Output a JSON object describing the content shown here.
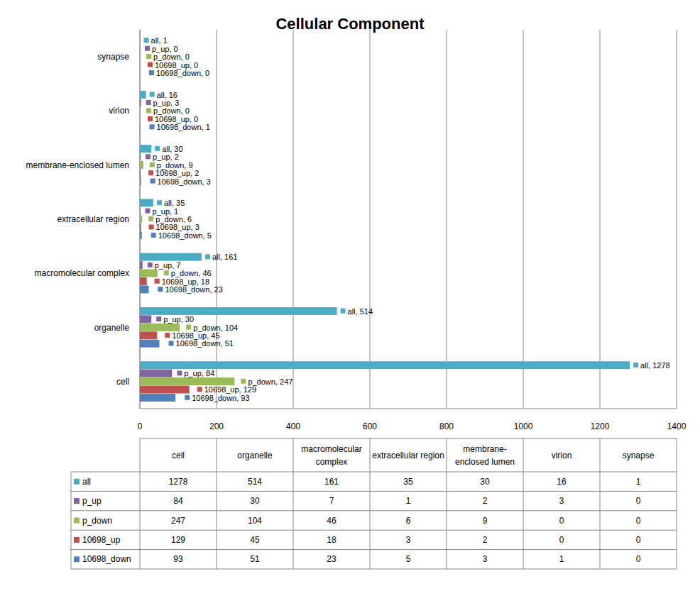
{
  "chart_data": {
    "type": "bar",
    "title": "Cellular Component",
    "orientation": "horizontal",
    "grid": true,
    "data_labels": true,
    "categories": [
      "cell",
      "organelle",
      "macromolecular complex",
      "extracellular region",
      "membrane-enclosed lumen",
      "virion",
      "synapse"
    ],
    "xlim": [
      0,
      1400
    ],
    "xticks": [
      0,
      200,
      400,
      600,
      800,
      1000,
      1200,
      1400
    ],
    "series": [
      {
        "name": "all",
        "color": "#4bacc6",
        "values": [
          1278,
          514,
          161,
          35,
          30,
          16,
          1
        ],
        "value_labels": [
          "all, 1278",
          "all, 514",
          "all, 161",
          "all, 35",
          "all, 30",
          "all, 16",
          "all, 1"
        ]
      },
      {
        "name": "p_up",
        "color": "#8064a2",
        "values": [
          84,
          30,
          7,
          1,
          2,
          3,
          0
        ],
        "value_labels": [
          "p_up, 84",
          "p_up, 30",
          "p_up, 7",
          "p_up, 1",
          "p_up, 2",
          "p_up, 3",
          "p_up, 0"
        ]
      },
      {
        "name": "p_down",
        "color": "#9bbb59",
        "values": [
          247,
          104,
          46,
          6,
          9,
          0,
          0
        ],
        "value_labels": [
          "p_down, 247",
          "p_down, 104",
          "p_down, 46",
          "p_down, 6",
          "p_down, 9",
          "p_down, 0",
          "p_down, 0"
        ]
      },
      {
        "name": "10698_up",
        "color": "#c0504d",
        "values": [
          129,
          45,
          18,
          3,
          2,
          0,
          0
        ],
        "value_labels": [
          "10698_up, 129",
          "10698_up, 45",
          "10698_up, 18",
          "10698_up, 3",
          "10698_up, 2",
          "10698_up, 0",
          "10698_up, 0"
        ]
      },
      {
        "name": "10698_down",
        "color": "#4f81bd",
        "values": [
          93,
          51,
          23,
          5,
          3,
          1,
          0
        ],
        "value_labels": [
          "10698_down, 93",
          "10698_down, 51",
          "10698_down, 23",
          "10698_down, 5",
          "10698_down, 3",
          "10698_down, 1",
          "10698_down, 0"
        ]
      }
    ]
  }
}
